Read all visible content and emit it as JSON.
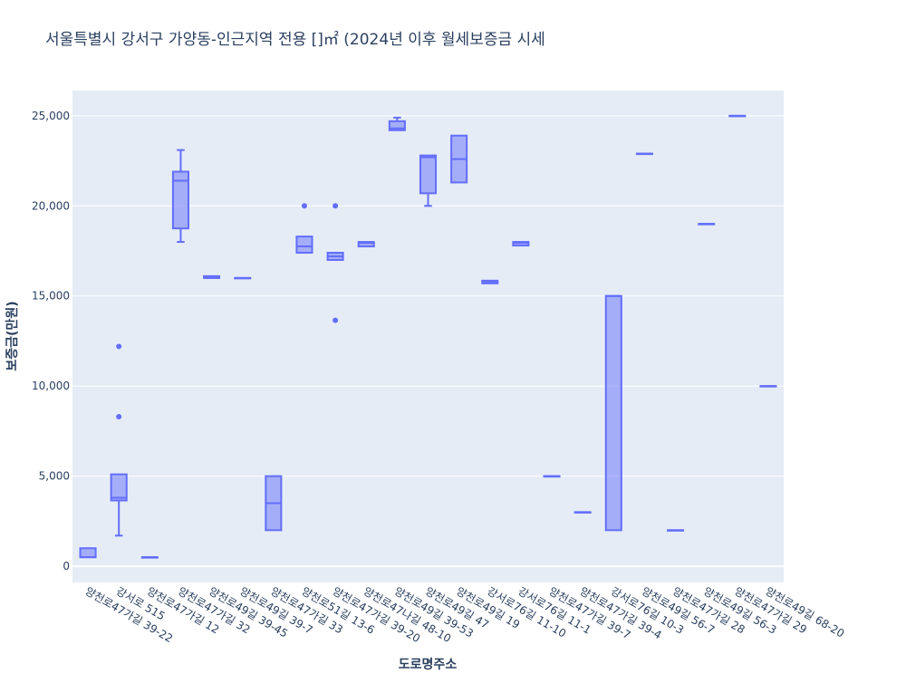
{
  "chart_data": {
    "type": "box",
    "title": "서울특별시 강서구 가양동-인근지역 전용 []㎡ (2024년 이후 월세보증금 시세",
    "xlabel": "도로명주소",
    "ylabel": "보증금(만원)",
    "ylim": [
      -900,
      26400
    ],
    "yticks": [
      0,
      5000,
      10000,
      15000,
      20000,
      25000
    ],
    "ytick_labels": [
      "0",
      "5,000",
      "10,000",
      "15,000",
      "20,000",
      "25,000"
    ],
    "grid": true,
    "legend": "none",
    "colors": {
      "line": "#636efa",
      "fill": "#636efa",
      "plot_bg": "#e5ecf6",
      "grid": "#ffffff",
      "text": "#2a3f5f"
    },
    "categories": [
      "양천로47가길 39-22",
      "강서로 515",
      "양천로47가길 12",
      "양천로47가길 32",
      "양천로49길 39-45",
      "양천로49길 39-7",
      "양천로47가길 33",
      "양천로51길 13-6",
      "양천로47가길 39-20",
      "양천로47나길 48-10",
      "양천로49길 39-53",
      "양천로49길 47",
      "양천로49길 19",
      "강서로76길 11-10",
      "강서로76길 11-1",
      "양천로47가길 39-7",
      "양천로47가길 39-4",
      "강서로76길 10-3",
      "양천로49길 56-7",
      "양천로47가길 28",
      "양천로49길 56-3",
      "양천로47가길 29",
      "양천로49길 68-20"
    ],
    "boxes": [
      {
        "category": "양천로47가길 39-22",
        "min": 500,
        "q1": 500,
        "median": 500,
        "q3": 1000,
        "max": 1000,
        "outliers": []
      },
      {
        "category": "강서로 515",
        "min": 1700,
        "q1": 3650,
        "median": 3800,
        "q3": 5100,
        "max": 5100,
        "outliers": [
          8300,
          12200
        ]
      },
      {
        "category": "양천로47가길 12",
        "min": 500,
        "q1": 500,
        "median": 500,
        "q3": 500,
        "max": 500,
        "outliers": []
      },
      {
        "category": "양천로47가길 32",
        "min": 18000,
        "q1": 18750,
        "median": 21400,
        "q3": 21900,
        "max": 23100,
        "outliers": []
      },
      {
        "category": "양천로49길 39-45",
        "min": 16000,
        "q1": 16000,
        "median": 16000,
        "q3": 16100,
        "max": 16100,
        "outliers": []
      },
      {
        "category": "양천로49길 39-7",
        "min": 16000,
        "q1": 16000,
        "median": 16000,
        "q3": 16000,
        "max": 16000,
        "outliers": []
      },
      {
        "category": "양천로47가길 33",
        "min": 2000,
        "q1": 2000,
        "median": 3500,
        "q3": 5000,
        "max": 5000,
        "outliers": []
      },
      {
        "category": "양천로51길 13-6",
        "min": 17400,
        "q1": 17400,
        "median": 17750,
        "q3": 18300,
        "max": 18300,
        "outliers": [
          20000
        ]
      },
      {
        "category": "양천로47가길 39-20",
        "min": 17000,
        "q1": 17000,
        "median": 17200,
        "q3": 17400,
        "max": 17400,
        "outliers": [
          13650,
          20000
        ]
      },
      {
        "category": "양천로47나길 48-10",
        "min": 17750,
        "q1": 17750,
        "median": 17950,
        "q3": 18000,
        "max": 18000,
        "outliers": []
      },
      {
        "category": "양천로49길 39-53",
        "min": 24200,
        "q1": 24200,
        "median": 24300,
        "q3": 24700,
        "max": 24900,
        "outliers": []
      },
      {
        "category": "양천로49길 47",
        "min": 20000,
        "q1": 20700,
        "median": 22700,
        "q3": 22800,
        "max": 22800,
        "outliers": []
      },
      {
        "category": "양천로49길 19",
        "min": 21300,
        "q1": 21300,
        "median": 22600,
        "q3": 23900,
        "max": 23900,
        "outliers": []
      },
      {
        "category": "강서로76길 11-10",
        "min": 15700,
        "q1": 15700,
        "median": 15800,
        "q3": 15850,
        "max": 15850,
        "outliers": []
      },
      {
        "category": "강서로76길 11-1",
        "min": 17800,
        "q1": 17800,
        "median": 17950,
        "q3": 18000,
        "max": 18000,
        "outliers": []
      },
      {
        "category": "양천로47가길 39-7",
        "min": 5000,
        "q1": 5000,
        "median": 5000,
        "q3": 5000,
        "max": 5000,
        "outliers": []
      },
      {
        "category": "양천로47가길 39-4",
        "min": 3000,
        "q1": 3000,
        "median": 3000,
        "q3": 3000,
        "max": 3000,
        "outliers": []
      },
      {
        "category": "강서로76길 10-3",
        "min": 2000,
        "q1": 2000,
        "median": 15000,
        "q3": 15000,
        "max": 15000,
        "outliers": []
      },
      {
        "category": "양천로49길 56-7",
        "min": 22900,
        "q1": 22900,
        "median": 22900,
        "q3": 22900,
        "max": 22900,
        "outliers": []
      },
      {
        "category": "양천로47가길 28",
        "min": 2000,
        "q1": 2000,
        "median": 2000,
        "q3": 2000,
        "max": 2000,
        "outliers": []
      },
      {
        "category": "양천로49길 56-3",
        "min": 19000,
        "q1": 19000,
        "median": 19000,
        "q3": 19000,
        "max": 19000,
        "outliers": []
      },
      {
        "category": "양천로47가길 29",
        "min": 25000,
        "q1": 25000,
        "median": 25000,
        "q3": 25000,
        "max": 25000,
        "outliers": []
      },
      {
        "category": "양천로49길 68-20",
        "min": 10000,
        "q1": 10000,
        "median": 10000,
        "q3": 10000,
        "max": 10000,
        "outliers": []
      }
    ]
  }
}
